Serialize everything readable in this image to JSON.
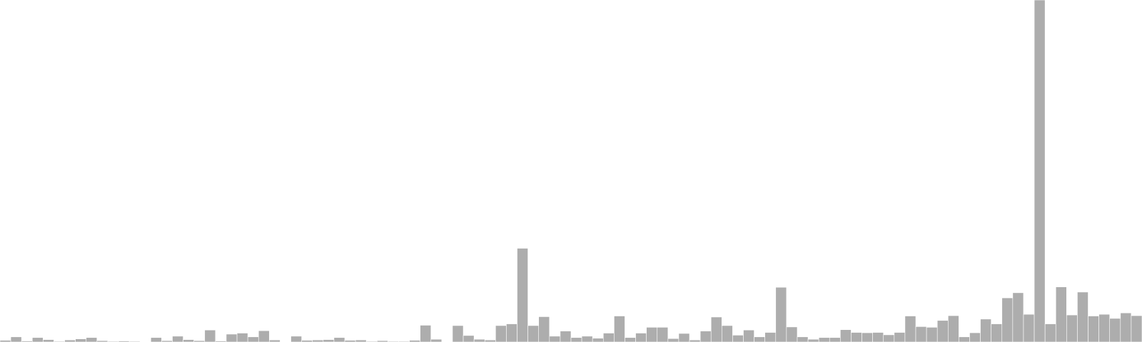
{
  "chart_data": {
    "type": "bar",
    "bar_color": "#adadad",
    "bar_edge_color": "#ffffff",
    "axes_visible": false,
    "grid": false,
    "ylim": [
      0,
      100
    ],
    "values": [
      0.5,
      1.5,
      0.3,
      1.3,
      0.7,
      0.2,
      0.6,
      0.9,
      1.3,
      0.4,
      0.2,
      0.3,
      0.2,
      0.0,
      1.3,
      0.4,
      1.7,
      0.7,
      0.4,
      3.5,
      0.3,
      2.3,
      2.6,
      1.5,
      3.3,
      0.6,
      0.0,
      1.7,
      0.5,
      0.6,
      0.7,
      1.3,
      0.5,
      0.6,
      0.2,
      0.4,
      0.2,
      0.2,
      0.5,
      4.9,
      0.8,
      0.0,
      4.8,
      1.9,
      0.8,
      0.6,
      4.8,
      5.3,
      27.4,
      4.8,
      7.4,
      1.7,
      3.2,
      1.3,
      1.7,
      1.1,
      2.6,
      7.6,
      1.3,
      2.6,
      4.3,
      4.3,
      1.0,
      2.5,
      0.6,
      3.2,
      7.3,
      4.8,
      2.0,
      3.5,
      1.5,
      2.8,
      16.0,
      4.4,
      1.5,
      0.8,
      1.3,
      1.3,
      3.6,
      2.8,
      2.7,
      2.8,
      2.1,
      2.8,
      7.6,
      4.5,
      4.3,
      6.3,
      7.7,
      1.5,
      2.7,
      6.7,
      5.3,
      12.9,
      14.4,
      8.1,
      100.0,
      5.3,
      16.1,
      7.9,
      14.6,
      7.6,
      8.1,
      6.9,
      8.5,
      7.7
    ]
  }
}
